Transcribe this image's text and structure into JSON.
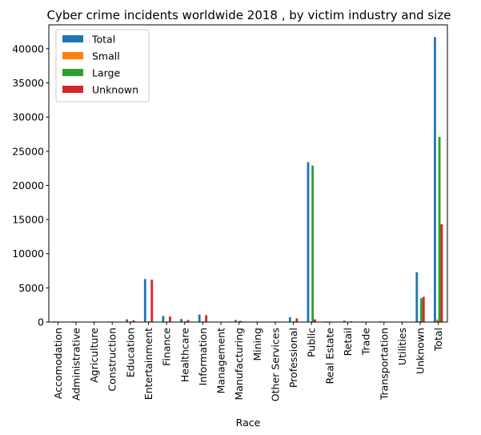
{
  "chart_data": {
    "type": "bar",
    "title": "Cyber crime incidents worldwide 2018 , by victim industry and size",
    "xlabel": "Race",
    "ylabel": "",
    "ylim": [
      0,
      43500
    ],
    "yticks": [
      0,
      5000,
      10000,
      15000,
      20000,
      25000,
      30000,
      35000,
      40000
    ],
    "grid": false,
    "legend_position": "top-left",
    "categories": [
      "Accomodation",
      "Administrative",
      "Agriculture",
      "Construction",
      "Education",
      "Entertainment",
      "Finance",
      "Healthcare",
      "Information",
      "Management",
      "Manufacturing",
      "Mining",
      "Other Services",
      "Professional",
      "Public",
      "Real Estate",
      "Retail",
      "Trade",
      "Transportation",
      "Utilities",
      "Unknown",
      "Total"
    ],
    "series": [
      {
        "name": "Total",
        "color": "#1f77b4",
        "values": [
          100,
          100,
          10,
          80,
          400,
          6300,
          900,
          450,
          1100,
          0,
          300,
          60,
          60,
          700,
          23400,
          100,
          200,
          80,
          100,
          60,
          7300,
          41700
        ]
      },
      {
        "name": "Small",
        "color": "#ff7f0e",
        "values": [
          20,
          20,
          0,
          10,
          30,
          40,
          50,
          50,
          30,
          0,
          20,
          10,
          10,
          50,
          40,
          10,
          20,
          10,
          10,
          0,
          100,
          350
        ]
      },
      {
        "name": "Large",
        "color": "#2ca02c",
        "values": [
          40,
          30,
          0,
          40,
          100,
          100,
          80,
          100,
          80,
          0,
          200,
          20,
          20,
          100,
          22900,
          30,
          50,
          20,
          40,
          30,
          3500,
          27100
        ]
      },
      {
        "name": "Unknown",
        "color": "#d62728",
        "values": [
          40,
          50,
          10,
          30,
          270,
          6200,
          800,
          300,
          1000,
          0,
          80,
          30,
          30,
          550,
          400,
          60,
          130,
          50,
          50,
          30,
          3700,
          14300
        ]
      }
    ]
  }
}
